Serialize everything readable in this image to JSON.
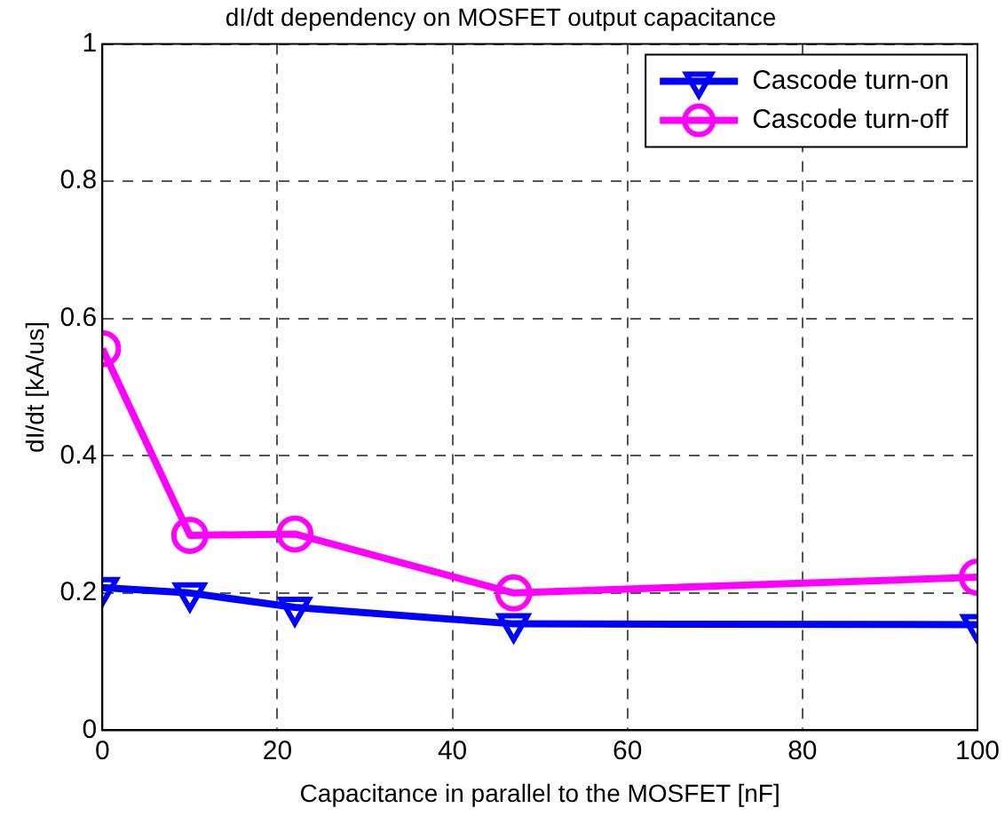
{
  "chart_data": {
    "type": "line",
    "title": "dI/dt dependency on MOSFET output capacitance",
    "xlabel": "Capacitance in parallel to the MOSFET [nF]",
    "ylabel": "dI/dt [kA/us]",
    "x": [
      0,
      10,
      22,
      47,
      100
    ],
    "series": [
      {
        "name": "Cascode turn-on",
        "color": "#0000ff",
        "marker": "triangle",
        "values": [
          0.208,
          0.2,
          0.179,
          0.155,
          0.154
        ]
      },
      {
        "name": "Cascode turn-off",
        "color": "#ff00ff",
        "marker": "circle",
        "values": [
          0.556,
          0.284,
          0.286,
          0.2,
          0.223
        ]
      }
    ],
    "xlim": [
      0,
      100
    ],
    "xticks": [
      0,
      20,
      40,
      60,
      80,
      100
    ],
    "ylim": [
      0,
      1
    ],
    "yticks": [
      0,
      0.2,
      0.4,
      0.6,
      0.8,
      1
    ],
    "grid": true,
    "legend": "top right",
    "line_style": "solid"
  }
}
